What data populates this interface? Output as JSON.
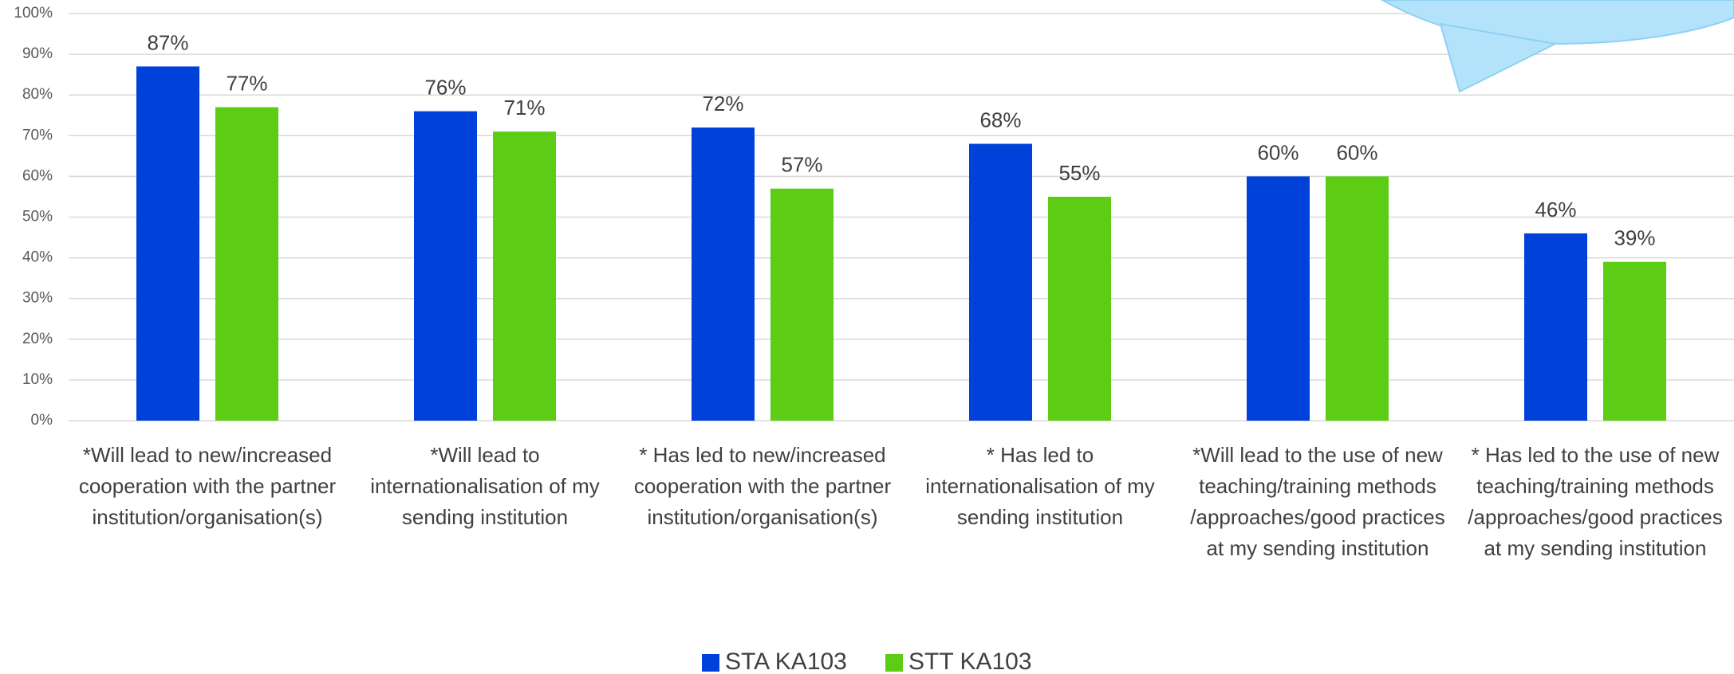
{
  "chart_data": {
    "type": "bar",
    "categories": [
      "*Will lead to new/increased cooperation with the partner institution/organisation(s)",
      "*Will lead to internationalisation of my sending institution",
      "* Has led to new/increased cooperation with the partner institution/organisation(s)",
      "* Has led to internationalisation of my sending institution",
      "*Will lead to the use of new teaching/training methods /approaches/good practices at my sending institution",
      "* Has led to the use of new teaching/training methods /approaches/good practices at my sending institution"
    ],
    "series": [
      {
        "name": "STA KA103",
        "color": "#0041d9",
        "values": [
          87,
          76,
          72,
          68,
          60,
          46
        ],
        "value_labels": [
          "87%",
          "76%",
          "72%",
          "68%",
          "60%",
          "46%"
        ]
      },
      {
        "name": "STT KA103",
        "color": "#5ccc14",
        "values": [
          77,
          71,
          57,
          55,
          60,
          39
        ],
        "value_labels": [
          "77%",
          "71%",
          "57%",
          "55%",
          "60%",
          "39%"
        ]
      }
    ],
    "ylim": [
      0,
      100
    ],
    "yticks": [
      {
        "value": 0,
        "label": "0%"
      },
      {
        "value": 10,
        "label": "10%"
      },
      {
        "value": 20,
        "label": "20%"
      },
      {
        "value": 30,
        "label": "30%"
      },
      {
        "value": 40,
        "label": "40%"
      },
      {
        "value": 50,
        "label": "50%"
      },
      {
        "value": 60,
        "label": "60%"
      },
      {
        "value": 70,
        "label": "70%"
      },
      {
        "value": 80,
        "label": "80%"
      },
      {
        "value": 90,
        "label": "90%"
      },
      {
        "value": 100,
        "label": "100%"
      }
    ],
    "grid": true,
    "legend": "bottom"
  }
}
